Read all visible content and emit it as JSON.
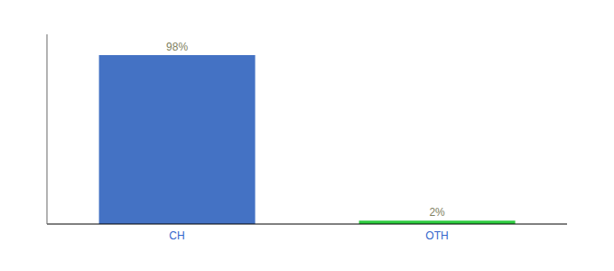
{
  "chart_data": {
    "type": "bar",
    "categories": [
      "CH",
      "OTH"
    ],
    "values": [
      98,
      2
    ],
    "value_labels": [
      "98%",
      "2%"
    ],
    "colors": [
      "#4472C4",
      "#2ECC40"
    ],
    "ylim": [
      0,
      110
    ],
    "data_labels": true,
    "tick_labels": "x",
    "grid": false
  }
}
